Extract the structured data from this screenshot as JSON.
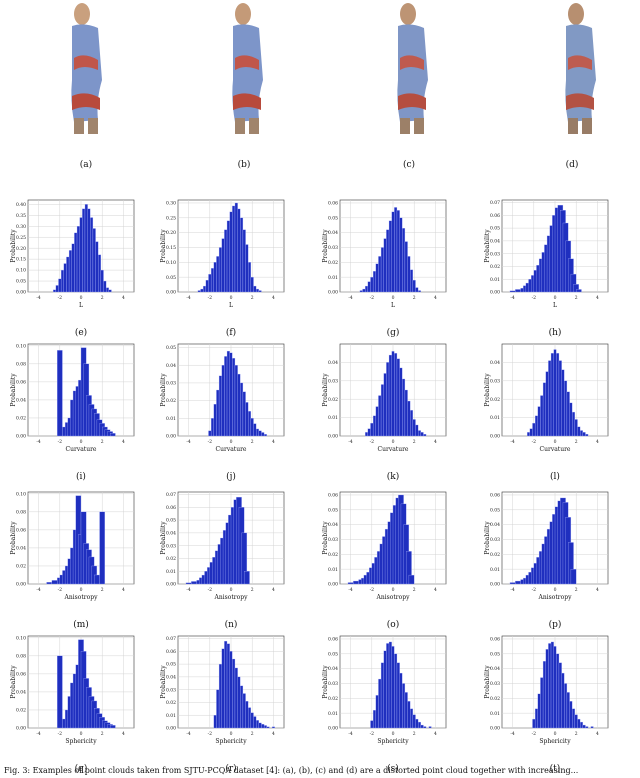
{
  "figure": {
    "image_captions": [
      "(a)",
      "(b)",
      "(c)",
      "(d)"
    ],
    "caption_text": "Fig. 3: Examples of point clouds taken from SJTU-PCQA dataset [4]: (a), (b), (c) and (d) are a distorted point cloud together with increasing..."
  },
  "chart_data": [
    {
      "id": "e",
      "caption": "(e)",
      "type": "bar",
      "xlabel": "L",
      "ylabel": "Probability",
      "xlim": [
        -5,
        5
      ],
      "xticks": [
        -4,
        -2,
        0,
        2,
        4
      ],
      "yticks": [
        0.0,
        0.05,
        0.1,
        0.15,
        0.2,
        0.25,
        0.3,
        0.35,
        0.4
      ],
      "ylim": [
        0,
        0.42
      ],
      "grid": true,
      "x": [
        -2.5,
        -2.25,
        -2.0,
        -1.75,
        -1.5,
        -1.25,
        -1.0,
        -0.75,
        -0.5,
        -0.25,
        0.0,
        0.25,
        0.5,
        0.75,
        1.0,
        1.25,
        1.5,
        1.75,
        2.0,
        2.25,
        2.5,
        2.75
      ],
      "values": [
        0.01,
        0.03,
        0.06,
        0.1,
        0.13,
        0.16,
        0.19,
        0.22,
        0.27,
        0.3,
        0.34,
        0.38,
        0.4,
        0.38,
        0.34,
        0.29,
        0.23,
        0.17,
        0.1,
        0.05,
        0.02,
        0.01
      ]
    },
    {
      "id": "f",
      "caption": "(f)",
      "type": "bar",
      "xlabel": "L",
      "ylabel": "Probability",
      "xlim": [
        -5,
        5
      ],
      "xticks": [
        -4,
        -2,
        0,
        2,
        4
      ],
      "yticks": [
        0.0,
        0.05,
        0.1,
        0.15,
        0.2,
        0.25,
        0.3
      ],
      "ylim": [
        0,
        0.31
      ],
      "grid": true,
      "x": [
        -3.0,
        -2.75,
        -2.5,
        -2.25,
        -2.0,
        -1.75,
        -1.5,
        -1.25,
        -1.0,
        -0.75,
        -0.5,
        -0.25,
        0.0,
        0.25,
        0.5,
        0.75,
        1.0,
        1.25,
        1.5,
        1.75,
        2.0,
        2.25,
        2.5,
        2.75
      ],
      "values": [
        0.005,
        0.01,
        0.02,
        0.04,
        0.06,
        0.08,
        0.1,
        0.12,
        0.15,
        0.18,
        0.21,
        0.24,
        0.27,
        0.29,
        0.3,
        0.28,
        0.25,
        0.21,
        0.16,
        0.1,
        0.05,
        0.02,
        0.01,
        0.005
      ]
    },
    {
      "id": "g",
      "caption": "(g)",
      "type": "bar",
      "xlabel": "L",
      "ylabel": "Probability",
      "xlim": [
        -5,
        5
      ],
      "xticks": [
        -4,
        -2,
        0,
        2,
        4
      ],
      "yticks": [
        0.0,
        0.01,
        0.02,
        0.03,
        0.04,
        0.05,
        0.06
      ],
      "ylim": [
        0,
        0.062
      ],
      "grid": true,
      "x": [
        -3.0,
        -2.75,
        -2.5,
        -2.25,
        -2.0,
        -1.75,
        -1.5,
        -1.25,
        -1.0,
        -0.75,
        -0.5,
        -0.25,
        0.0,
        0.25,
        0.5,
        0.75,
        1.0,
        1.25,
        1.5,
        1.75,
        2.0,
        2.25,
        2.5
      ],
      "values": [
        0.001,
        0.002,
        0.004,
        0.007,
        0.01,
        0.014,
        0.019,
        0.024,
        0.03,
        0.036,
        0.042,
        0.048,
        0.054,
        0.057,
        0.055,
        0.05,
        0.043,
        0.034,
        0.024,
        0.015,
        0.008,
        0.003,
        0.001
      ]
    },
    {
      "id": "h",
      "caption": "(h)",
      "type": "bar",
      "xlabel": "L",
      "ylabel": "Probability",
      "xlim": [
        -5,
        5
      ],
      "xticks": [
        -4,
        -2,
        0,
        2,
        4
      ],
      "yticks": [
        0.0,
        0.01,
        0.02,
        0.03,
        0.04,
        0.05,
        0.06,
        0.07
      ],
      "ylim": [
        0,
        0.072
      ],
      "grid": true,
      "x": [
        -4.0,
        -3.5,
        -3.0,
        -2.75,
        -2.5,
        -2.25,
        -2.0,
        -1.75,
        -1.5,
        -1.25,
        -1.0,
        -0.75,
        -0.5,
        -0.25,
        0.0,
        0.25,
        0.5,
        0.75,
        1.0,
        1.25,
        1.5,
        1.75,
        2.0,
        2.25
      ],
      "values": [
        0.001,
        0.002,
        0.003,
        0.005,
        0.007,
        0.01,
        0.013,
        0.017,
        0.021,
        0.026,
        0.031,
        0.037,
        0.044,
        0.052,
        0.06,
        0.066,
        0.068,
        0.064,
        0.054,
        0.04,
        0.026,
        0.014,
        0.006,
        0.002
      ]
    },
    {
      "id": "i",
      "caption": "(i)",
      "type": "bar",
      "xlabel": "Curvature",
      "ylabel": "Probability",
      "xlim": [
        -5,
        5
      ],
      "xticks": [
        -4,
        -2,
        0,
        2,
        4
      ],
      "yticks": [
        0.0,
        0.02,
        0.04,
        0.06,
        0.08,
        0.1
      ],
      "ylim": [
        0,
        0.102
      ],
      "grid": true,
      "x": [
        -2.0,
        -1.5,
        -1.25,
        -1.0,
        -0.75,
        -0.5,
        -0.25,
        0.0,
        0.25,
        0.5,
        0.75,
        1.0,
        1.25,
        1.5,
        1.75,
        2.0,
        2.25,
        2.5,
        2.75,
        3.0
      ],
      "values": [
        0.095,
        0.01,
        0.015,
        0.02,
        0.04,
        0.05,
        0.055,
        0.062,
        0.098,
        0.08,
        0.045,
        0.035,
        0.03,
        0.025,
        0.018,
        0.014,
        0.01,
        0.007,
        0.005,
        0.003
      ]
    },
    {
      "id": "j",
      "caption": "(j)",
      "type": "bar",
      "xlabel": "Curvature",
      "ylabel": "Probability",
      "xlim": [
        -5,
        5
      ],
      "xticks": [
        -4,
        -2,
        0,
        2,
        4
      ],
      "yticks": [
        0.0,
        0.01,
        0.02,
        0.03,
        0.04,
        0.05
      ],
      "ylim": [
        0,
        0.052
      ],
      "grid": true,
      "x": [
        -2.0,
        -1.75,
        -1.5,
        -1.25,
        -1.0,
        -0.75,
        -0.5,
        -0.25,
        0.0,
        0.25,
        0.5,
        0.75,
        1.0,
        1.25,
        1.5,
        1.75,
        2.0,
        2.25,
        2.5,
        2.75,
        3.0,
        3.25
      ],
      "values": [
        0.003,
        0.01,
        0.018,
        0.026,
        0.034,
        0.04,
        0.045,
        0.048,
        0.047,
        0.044,
        0.04,
        0.035,
        0.03,
        0.025,
        0.019,
        0.014,
        0.01,
        0.007,
        0.004,
        0.003,
        0.002,
        0.001
      ]
    },
    {
      "id": "k",
      "caption": "(k)",
      "type": "bar",
      "xlabel": "Curvature",
      "ylabel": "Probability",
      "xlim": [
        -5,
        5
      ],
      "xticks": [
        -4,
        -2,
        0,
        2,
        4
      ],
      "yticks": [
        0.0,
        0.01,
        0.02,
        0.03,
        0.04
      ],
      "ylim": [
        0,
        0.05
      ],
      "grid": true,
      "x": [
        -2.5,
        -2.25,
        -2.0,
        -1.75,
        -1.5,
        -1.25,
        -1.0,
        -0.75,
        -0.5,
        -0.25,
        0.0,
        0.25,
        0.5,
        0.75,
        1.0,
        1.25,
        1.5,
        1.75,
        2.0,
        2.25,
        2.5,
        2.75,
        3.0
      ],
      "values": [
        0.002,
        0.004,
        0.007,
        0.011,
        0.016,
        0.022,
        0.028,
        0.034,
        0.04,
        0.044,
        0.046,
        0.045,
        0.042,
        0.037,
        0.031,
        0.025,
        0.019,
        0.014,
        0.009,
        0.006,
        0.003,
        0.002,
        0.001
      ]
    },
    {
      "id": "l",
      "caption": "(l)",
      "type": "bar",
      "xlabel": "Curvature",
      "ylabel": "Probability",
      "xlim": [
        -5,
        5
      ],
      "xticks": [
        -4,
        -2,
        0,
        2,
        4
      ],
      "yticks": [
        0.0,
        0.01,
        0.02,
        0.03,
        0.04
      ],
      "ylim": [
        0,
        0.05
      ],
      "grid": true,
      "x": [
        -2.5,
        -2.25,
        -2.0,
        -1.75,
        -1.5,
        -1.25,
        -1.0,
        -0.75,
        -0.5,
        -0.25,
        0.0,
        0.25,
        0.5,
        0.75,
        1.0,
        1.25,
        1.5,
        1.75,
        2.0,
        2.25,
        2.5,
        2.75,
        3.0
      ],
      "values": [
        0.002,
        0.004,
        0.007,
        0.011,
        0.016,
        0.022,
        0.029,
        0.035,
        0.041,
        0.045,
        0.047,
        0.045,
        0.041,
        0.036,
        0.03,
        0.024,
        0.018,
        0.013,
        0.009,
        0.005,
        0.003,
        0.002,
        0.001
      ]
    },
    {
      "id": "m",
      "caption": "(m)",
      "type": "bar",
      "xlabel": "Anisotropy",
      "ylabel": "Probability",
      "xlim": [
        -5,
        5
      ],
      "xticks": [
        -4,
        -2,
        0,
        2,
        4
      ],
      "yticks": [
        0.0,
        0.02,
        0.04,
        0.06,
        0.08,
        0.1
      ],
      "ylim": [
        0,
        0.102
      ],
      "grid": true,
      "x": [
        -3.0,
        -2.5,
        -2.0,
        -1.75,
        -1.5,
        -1.25,
        -1.0,
        -0.75,
        -0.5,
        -0.25,
        0.0,
        0.25,
        0.5,
        0.75,
        1.0,
        1.25,
        1.5,
        2.0
      ],
      "values": [
        0.002,
        0.004,
        0.007,
        0.01,
        0.015,
        0.02,
        0.028,
        0.04,
        0.06,
        0.098,
        0.055,
        0.08,
        0.045,
        0.038,
        0.03,
        0.02,
        0.01,
        0.08
      ]
    },
    {
      "id": "n",
      "caption": "(n)",
      "type": "bar",
      "xlabel": "Anisotropy",
      "ylabel": "Probability",
      "xlim": [
        -5,
        5
      ],
      "xticks": [
        -4,
        -2,
        0,
        2,
        4
      ],
      "yticks": [
        0.0,
        0.01,
        0.02,
        0.03,
        0.04,
        0.05,
        0.06,
        0.07
      ],
      "ylim": [
        0,
        0.072
      ],
      "grid": true,
      "x": [
        -4.0,
        -3.5,
        -3.0,
        -2.75,
        -2.5,
        -2.25,
        -2.0,
        -1.75,
        -1.5,
        -1.25,
        -1.0,
        -0.75,
        -0.5,
        -0.25,
        0.0,
        0.25,
        0.5,
        0.75,
        1.0,
        1.25,
        1.5
      ],
      "values": [
        0.001,
        0.002,
        0.003,
        0.005,
        0.007,
        0.01,
        0.013,
        0.017,
        0.021,
        0.026,
        0.031,
        0.036,
        0.042,
        0.048,
        0.054,
        0.06,
        0.066,
        0.068,
        0.06,
        0.04,
        0.01
      ]
    },
    {
      "id": "o",
      "caption": "(o)",
      "type": "bar",
      "xlabel": "Anisotropy",
      "ylabel": "Probability",
      "xlim": [
        -5,
        5
      ],
      "xticks": [
        -4,
        -2,
        0,
        2,
        4
      ],
      "yticks": [
        0.0,
        0.01,
        0.02,
        0.03,
        0.04,
        0.05,
        0.06
      ],
      "ylim": [
        0,
        0.062
      ],
      "grid": true,
      "x": [
        -4.0,
        -3.5,
        -3.0,
        -2.75,
        -2.5,
        -2.25,
        -2.0,
        -1.75,
        -1.5,
        -1.25,
        -1.0,
        -0.75,
        -0.5,
        -0.25,
        0.0,
        0.25,
        0.5,
        0.75,
        1.0,
        1.25,
        1.5,
        1.75
      ],
      "values": [
        0.001,
        0.002,
        0.003,
        0.004,
        0.006,
        0.008,
        0.011,
        0.014,
        0.018,
        0.022,
        0.027,
        0.032,
        0.037,
        0.042,
        0.048,
        0.053,
        0.058,
        0.06,
        0.054,
        0.04,
        0.022,
        0.006
      ]
    },
    {
      "id": "p",
      "caption": "(p)",
      "type": "bar",
      "xlabel": "Anisotropy",
      "ylabel": "Probability",
      "xlim": [
        -5,
        5
      ],
      "xticks": [
        -4,
        -2,
        0,
        2,
        4
      ],
      "yticks": [
        0.0,
        0.01,
        0.02,
        0.03,
        0.04,
        0.05,
        0.06
      ],
      "ylim": [
        0,
        0.062
      ],
      "grid": true,
      "x": [
        -4.0,
        -3.5,
        -3.0,
        -2.75,
        -2.5,
        -2.25,
        -2.0,
        -1.75,
        -1.5,
        -1.25,
        -1.0,
        -0.75,
        -0.5,
        -0.25,
        0.0,
        0.25,
        0.5,
        0.75,
        1.0,
        1.25,
        1.5,
        1.75
      ],
      "values": [
        0.001,
        0.002,
        0.003,
        0.004,
        0.006,
        0.008,
        0.011,
        0.014,
        0.018,
        0.022,
        0.027,
        0.032,
        0.037,
        0.042,
        0.047,
        0.052,
        0.056,
        0.058,
        0.055,
        0.045,
        0.028,
        0.01
      ]
    },
    {
      "id": "q",
      "caption": "(q)",
      "type": "bar",
      "xlabel": "Sphericity",
      "ylabel": "Probability",
      "xlim": [
        -5,
        5
      ],
      "xticks": [
        -4,
        -2,
        0,
        2,
        4
      ],
      "yticks": [
        0.0,
        0.02,
        0.04,
        0.06,
        0.08,
        0.1
      ],
      "ylim": [
        0,
        0.102
      ],
      "grid": true,
      "x": [
        -2.0,
        -1.5,
        -1.25,
        -1.0,
        -0.75,
        -0.5,
        -0.25,
        0.0,
        0.25,
        0.5,
        0.75,
        1.0,
        1.25,
        1.5,
        1.75,
        2.0,
        2.25,
        2.5,
        2.75,
        3.0
      ],
      "values": [
        0.08,
        0.01,
        0.02,
        0.035,
        0.05,
        0.06,
        0.07,
        0.098,
        0.085,
        0.055,
        0.045,
        0.035,
        0.03,
        0.022,
        0.016,
        0.012,
        0.008,
        0.006,
        0.004,
        0.003
      ]
    },
    {
      "id": "r",
      "caption": "(r)",
      "type": "bar",
      "xlabel": "Sphericity",
      "ylabel": "Probability",
      "xlim": [
        -5,
        5
      ],
      "xticks": [
        -4,
        -2,
        0,
        2,
        4
      ],
      "yticks": [
        0.0,
        0.01,
        0.02,
        0.03,
        0.04,
        0.05,
        0.06,
        0.07
      ],
      "ylim": [
        0,
        0.072
      ],
      "grid": true,
      "x": [
        -1.5,
        -1.25,
        -1.0,
        -0.75,
        -0.5,
        -0.25,
        0.0,
        0.25,
        0.5,
        0.75,
        1.0,
        1.25,
        1.5,
        1.75,
        2.0,
        2.25,
        2.5,
        2.75,
        3.0,
        3.25,
        3.5,
        4.0
      ],
      "values": [
        0.01,
        0.03,
        0.05,
        0.062,
        0.068,
        0.066,
        0.06,
        0.054,
        0.047,
        0.04,
        0.033,
        0.027,
        0.021,
        0.016,
        0.012,
        0.009,
        0.006,
        0.004,
        0.003,
        0.002,
        0.001,
        0.001
      ]
    },
    {
      "id": "s",
      "caption": "(s)",
      "type": "bar",
      "xlabel": "Sphericity",
      "ylabel": "Probability",
      "xlim": [
        -5,
        5
      ],
      "xticks": [
        -4,
        -2,
        0,
        2,
        4
      ],
      "yticks": [
        0.0,
        0.01,
        0.02,
        0.03,
        0.04,
        0.05,
        0.06
      ],
      "ylim": [
        0,
        0.062
      ],
      "grid": true,
      "x": [
        -2.0,
        -1.75,
        -1.5,
        -1.25,
        -1.0,
        -0.75,
        -0.5,
        -0.25,
        0.0,
        0.25,
        0.5,
        0.75,
        1.0,
        1.25,
        1.5,
        1.75,
        2.0,
        2.25,
        2.5,
        2.75,
        3.0,
        3.5
      ],
      "values": [
        0.005,
        0.012,
        0.022,
        0.033,
        0.044,
        0.052,
        0.057,
        0.058,
        0.055,
        0.05,
        0.044,
        0.037,
        0.03,
        0.024,
        0.018,
        0.013,
        0.009,
        0.006,
        0.004,
        0.002,
        0.001,
        0.001
      ]
    },
    {
      "id": "t",
      "caption": "(t)",
      "type": "bar",
      "xlabel": "Sphericity",
      "ylabel": "Probability",
      "xlim": [
        -5,
        5
      ],
      "xticks": [
        -4,
        -2,
        0,
        2,
        4
      ],
      "yticks": [
        0.0,
        0.01,
        0.02,
        0.03,
        0.04,
        0.05,
        0.06
      ],
      "ylim": [
        0,
        0.062
      ],
      "grid": true,
      "x": [
        -2.0,
        -1.75,
        -1.5,
        -1.25,
        -1.0,
        -0.75,
        -0.5,
        -0.25,
        0.0,
        0.25,
        0.5,
        0.75,
        1.0,
        1.25,
        1.5,
        1.75,
        2.0,
        2.25,
        2.5,
        2.75,
        3.0,
        3.5
      ],
      "values": [
        0.006,
        0.013,
        0.023,
        0.034,
        0.045,
        0.053,
        0.057,
        0.058,
        0.055,
        0.05,
        0.044,
        0.037,
        0.03,
        0.024,
        0.018,
        0.013,
        0.009,
        0.006,
        0.004,
        0.002,
        0.001,
        0.001
      ]
    }
  ]
}
